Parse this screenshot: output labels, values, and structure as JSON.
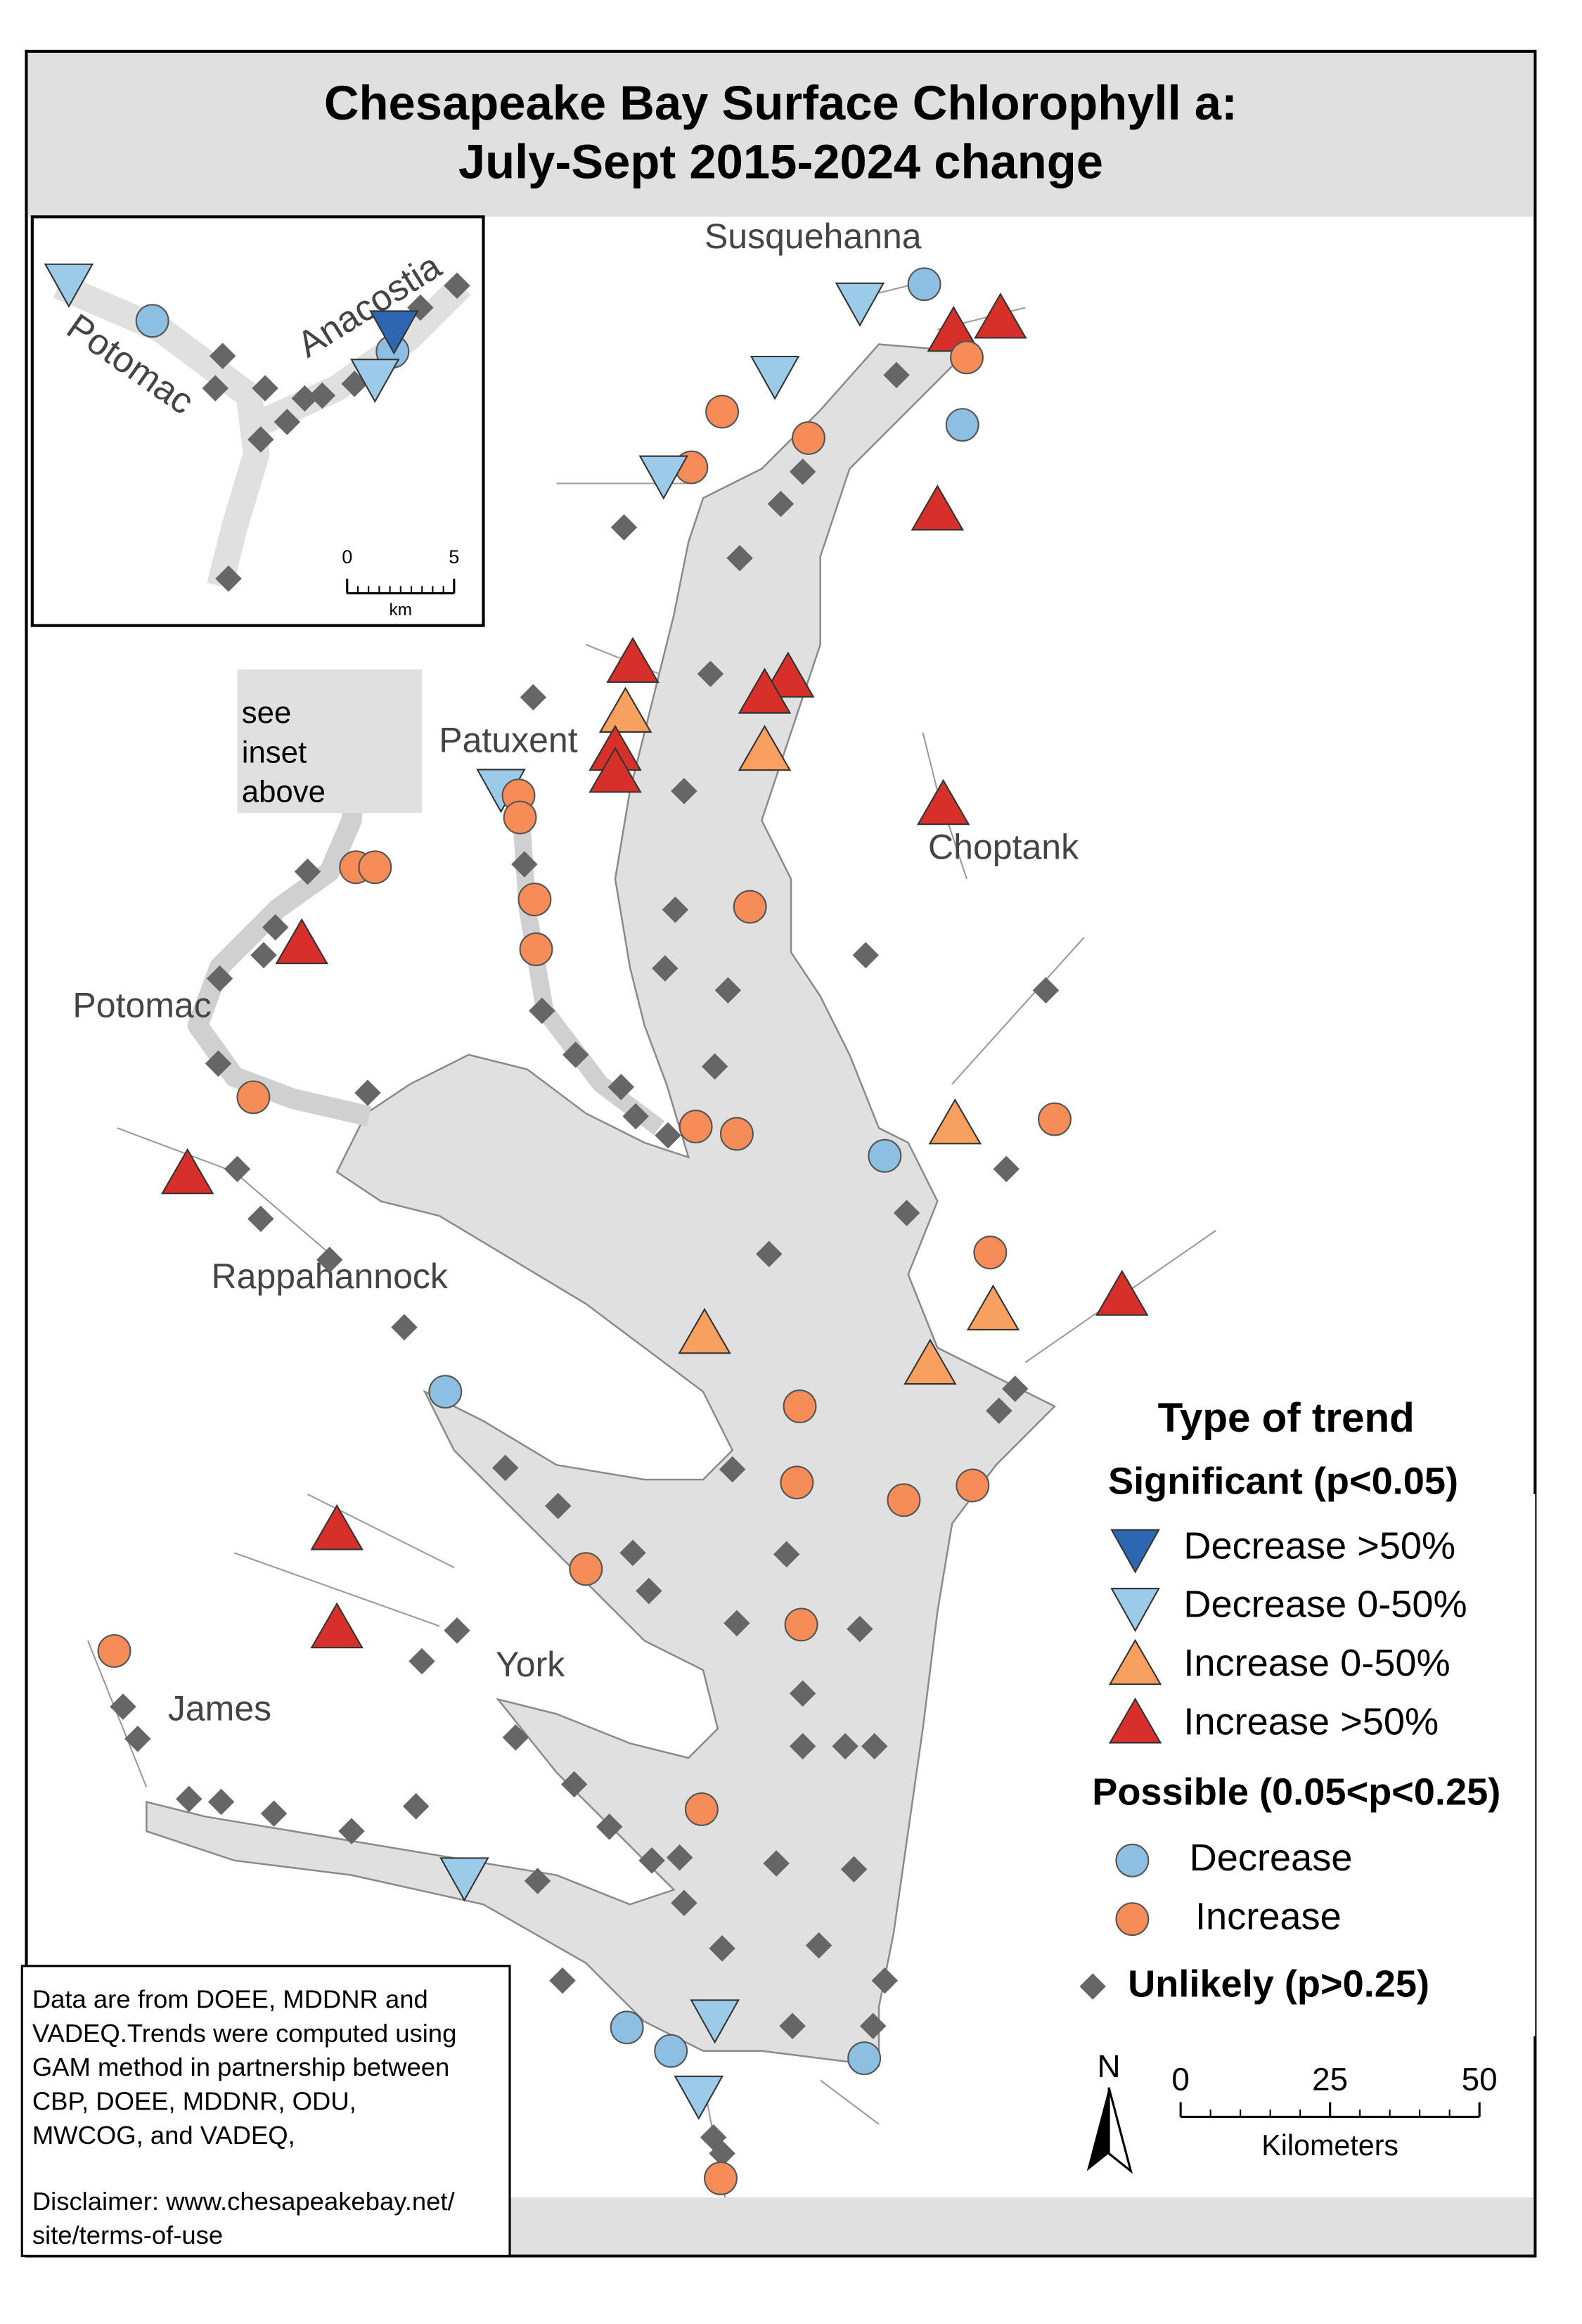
{
  "title": [
    "Chesapeake Bay Surface Chlorophyll a:",
    "July-Sept 2015-2024 change"
  ],
  "places": [
    "Susquehanna",
    "Patuxent",
    "Choptank",
    "Potomac",
    "Rappahannock",
    "York",
    "James"
  ],
  "inset": {
    "labels": [
      "Potomac",
      "Anacostia"
    ],
    "scale": {
      "ticks": [
        0,
        5
      ],
      "unit": "km"
    }
  },
  "inset_note": [
    "see",
    "inset",
    "above"
  ],
  "legend": {
    "title": "Type of trend",
    "significant": {
      "heading": "Significant (p<0.05)",
      "items": [
        {
          "label": "Decrease >50%",
          "color": "#2e67b1"
        },
        {
          "label": "Decrease 0-50%",
          "color": "#9ccbea"
        },
        {
          "label": "Increase 0-50%",
          "color": "#f7a05f"
        },
        {
          "label": "Increase >50%",
          "color": "#d7302a"
        }
      ]
    },
    "possible": {
      "heading": "Possible (0.05<p<0.25)",
      "items": [
        {
          "label": "Decrease",
          "color": "#8dbfe2"
        },
        {
          "label": "Increase",
          "color": "#f68c58"
        }
      ]
    },
    "unlikely": {
      "label": "Unlikely (p>0.25)",
      "color": "#666666"
    }
  },
  "north": "N",
  "scale": {
    "ticks": [
      0,
      25,
      50
    ],
    "unit": "Kilometers"
  },
  "note": [
    "Data are from DOEE, MDDNR and",
    "VADEQ.Trends were computed using",
    "GAM method in partnership between",
    "CBP, DOEE, MDDNR, ODU,",
    "MWCOG, and VADEQ,",
    "Disclaimer: www.chesapeakebay.net/",
    "site/terms-of-use"
  ]
}
